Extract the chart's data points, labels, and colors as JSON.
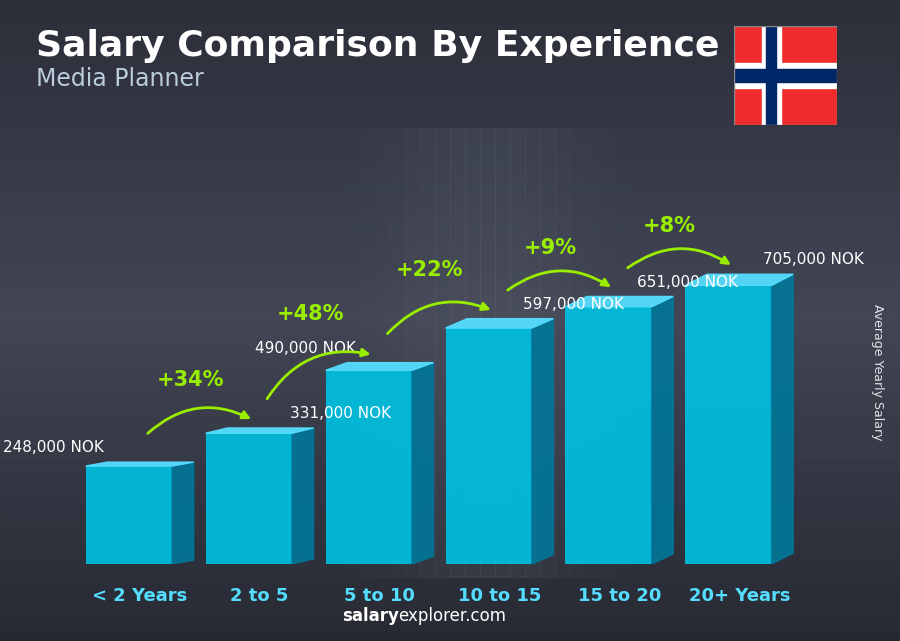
{
  "title": "Salary Comparison By Experience",
  "subtitle": "Media Planner",
  "categories": [
    "< 2 Years",
    "2 to 5",
    "5 to 10",
    "10 to 15",
    "15 to 20",
    "20+ Years"
  ],
  "values": [
    248000,
    331000,
    490000,
    597000,
    651000,
    705000
  ],
  "value_labels": [
    "248,000 NOK",
    "331,000 NOK",
    "490,000 NOK",
    "597,000 NOK",
    "651,000 NOK",
    "705,000 NOK"
  ],
  "pct_changes": [
    "+34%",
    "+48%",
    "+22%",
    "+9%",
    "+8%"
  ],
  "bar_front_color": "#00bfdf",
  "bar_side_color": "#007799",
  "bar_top_color": "#55ddff",
  "title_color": "#ffffff",
  "subtitle_color": "#bbccdd",
  "label_color": "#ffffff",
  "pct_color": "#99ee00",
  "xlabel_color": "#55ddff",
  "ylabel_text": "Average Yearly Salary",
  "footer_salary": "salary",
  "footer_rest": "explorer.com",
  "title_fontsize": 26,
  "subtitle_fontsize": 17,
  "label_fontsize": 11,
  "pct_fontsize": 15,
  "xlabel_fontsize": 13,
  "ylabel_fontsize": 9,
  "footer_fontsize": 12,
  "bg_color": "#3a3a4a",
  "bg_dark": "#1a1a28"
}
